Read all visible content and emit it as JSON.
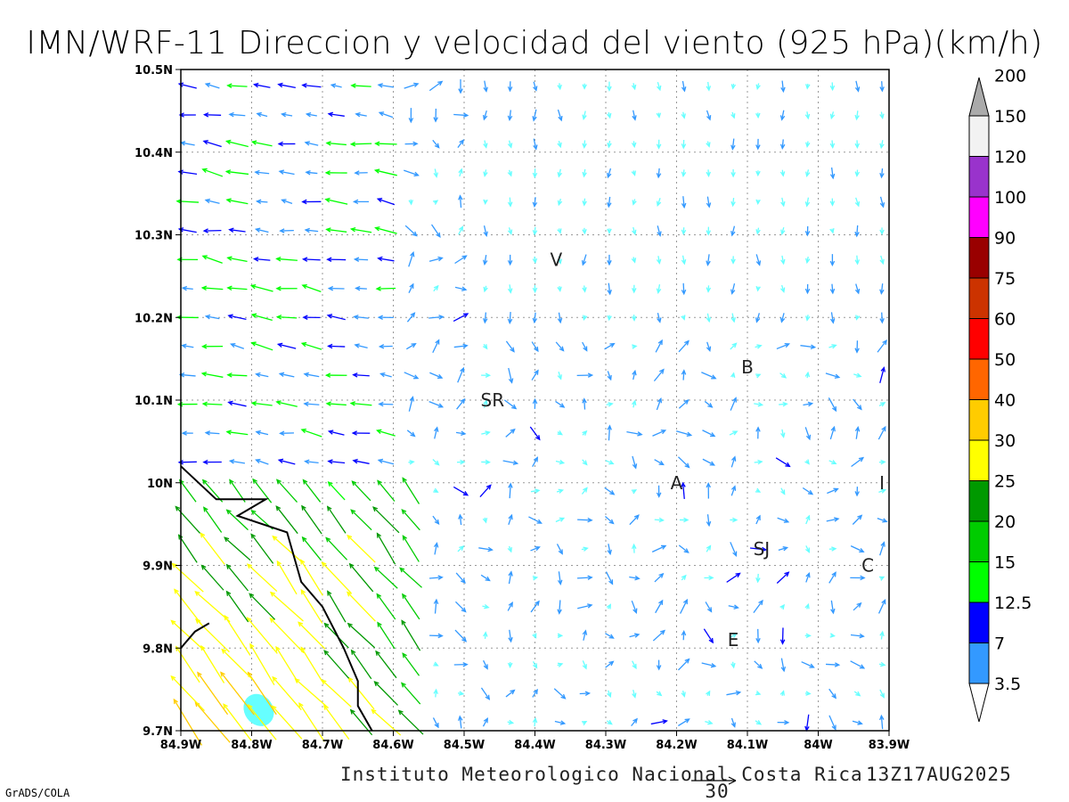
{
  "title": "IMN/WRF-11 Direccion y velocidad del viento (925 hPa)(km/h)",
  "footer": {
    "institution": "Instituto Meteorologico Nacional Costa Rica",
    "timestamp": "13Z17AUG2025",
    "reference_vector_label": "30",
    "credit": "GrADS/COLA"
  },
  "chart_data": {
    "type": "vector field",
    "title": "IMN/WRF-11 Direccion y velocidad del viento (925 hPa)(km/h)",
    "units": "km/h",
    "level": "925 hPa",
    "xlim": [
      -84.9,
      -83.9
    ],
    "ylim": [
      9.7,
      10.5
    ],
    "x_tick_labels": [
      "84.9W",
      "84.8W",
      "84.7W",
      "84.6W",
      "84.5W",
      "84.4W",
      "84.3W",
      "84.2W",
      "84.1W",
      "84W",
      "83.9W"
    ],
    "y_tick_labels": [
      "10.5N",
      "10.4N",
      "10.3N",
      "10.2N",
      "10.1N",
      "10N",
      "9.9N",
      "9.8N",
      "9.7N"
    ],
    "grid": true,
    "legend_placement": "right",
    "colorbar": {
      "labels": [
        "3.5",
        "7",
        "12.5",
        "15",
        "20",
        "25",
        "30",
        "40",
        "50",
        "60",
        "75",
        "90",
        "100",
        "120",
        "150",
        "200"
      ],
      "colors": [
        "#66ffff",
        "#3399ff",
        "#0000ff",
        "#00ff00",
        "#00cc00",
        "#009900",
        "#ffff00",
        "#ffcc00",
        "#ff6600",
        "#ff0000",
        "#cc3300",
        "#990000",
        "#ff00ff",
        "#9933cc",
        "#f2f2f2",
        "#aaaaaa"
      ]
    },
    "places": [
      {
        "label": "V",
        "lon": -84.37,
        "lat": 10.27
      },
      {
        "label": "B",
        "lon": -84.1,
        "lat": 10.14
      },
      {
        "label": "SR",
        "lon": -84.46,
        "lat": 10.1
      },
      {
        "label": "A",
        "lon": -84.2,
        "lat": 10.0
      },
      {
        "label": "I",
        "lon": -83.91,
        "lat": 10.0
      },
      {
        "label": "SJ",
        "lon": -84.08,
        "lat": 9.92
      },
      {
        "label": "C",
        "lon": -83.93,
        "lat": 9.9
      },
      {
        "label": "E",
        "lon": -84.12,
        "lat": 9.81
      }
    ],
    "coastline": [
      [
        -84.9,
        10.02
      ],
      [
        -84.85,
        9.98
      ],
      [
        -84.78,
        9.98
      ],
      [
        -84.82,
        9.96
      ],
      [
        -84.75,
        9.94
      ],
      [
        -84.74,
        9.91
      ],
      [
        -84.73,
        9.88
      ],
      [
        -84.7,
        9.85
      ],
      [
        -84.67,
        9.8
      ],
      [
        -84.65,
        9.76
      ],
      [
        -84.65,
        9.73
      ],
      [
        -84.63,
        9.7
      ]
    ],
    "coastline2": [
      [
        -84.9,
        9.8
      ],
      [
        -84.88,
        9.82
      ],
      [
        -84.86,
        9.83
      ]
    ],
    "shaded_region": {
      "lon": -84.79,
      "lat": 9.725,
      "speed_class": "3.5"
    },
    "field_regions": [
      {
        "region": "northwest coast",
        "direction_to": "W",
        "speed_range_kmh": "7-20"
      },
      {
        "region": "southwest lowlands",
        "direction_to": "NW",
        "speed_range_kmh": "20-60"
      },
      {
        "region": "central valley",
        "direction_to": "E-SE",
        "speed_range_kmh": "3.5-15"
      },
      {
        "region": "northeast",
        "direction_to": "S",
        "speed_range_kmh": "3.5-12.5"
      }
    ]
  }
}
